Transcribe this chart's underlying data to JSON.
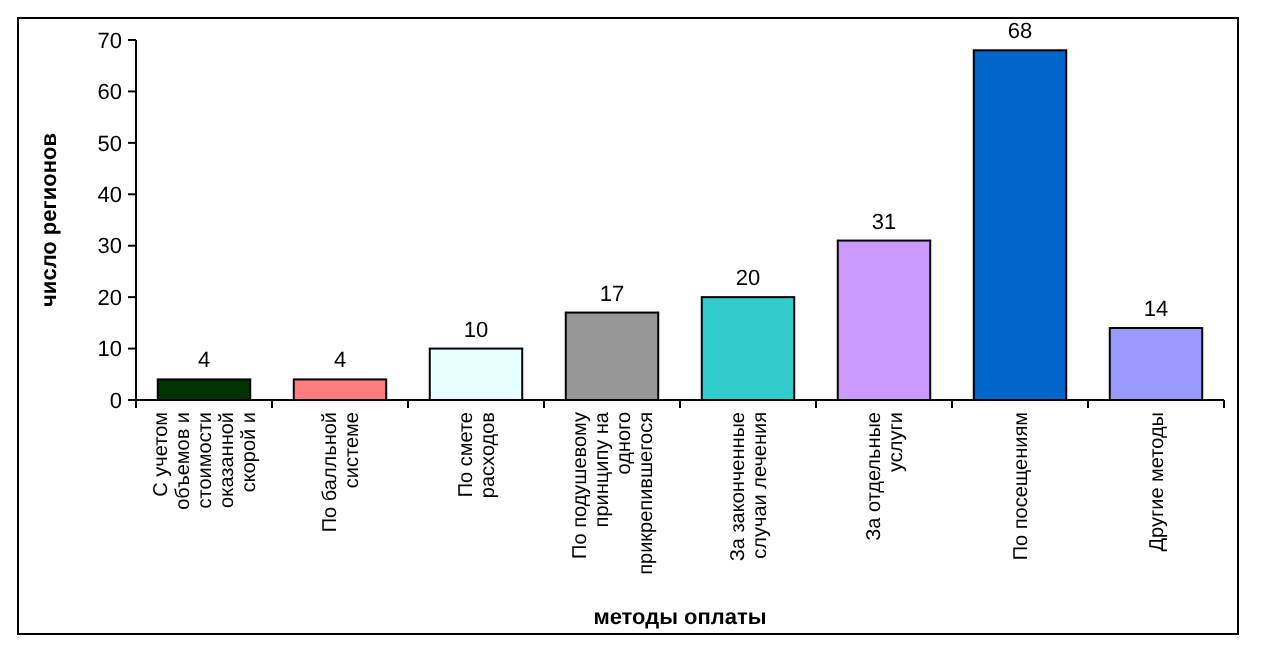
{
  "chart_data": {
    "type": "bar",
    "xlabel": "методы оплаты",
    "ylabel": "число регионов",
    "categories": [
      "С учетом объемов и стоимости оказанной скорой и",
      "По балльной системе",
      "По смете расходов",
      "По подушевому принципу на одного прикрепившегося",
      "За законченные случаи лечения",
      "За отдельные услуги",
      "По посещениям",
      "Другие методы"
    ],
    "values": [
      4,
      4,
      10,
      17,
      20,
      31,
      68,
      14
    ],
    "colors": [
      "#003300",
      "#ff7c80",
      "#e6ffff",
      "#969696",
      "#33cccc",
      "#cc99ff",
      "#0066cc",
      "#9999ff"
    ],
    "ylim": [
      0,
      70
    ],
    "yticks": [
      0,
      10,
      20,
      30,
      40,
      50,
      60,
      70
    ],
    "data_labels": true,
    "grid": false
  }
}
